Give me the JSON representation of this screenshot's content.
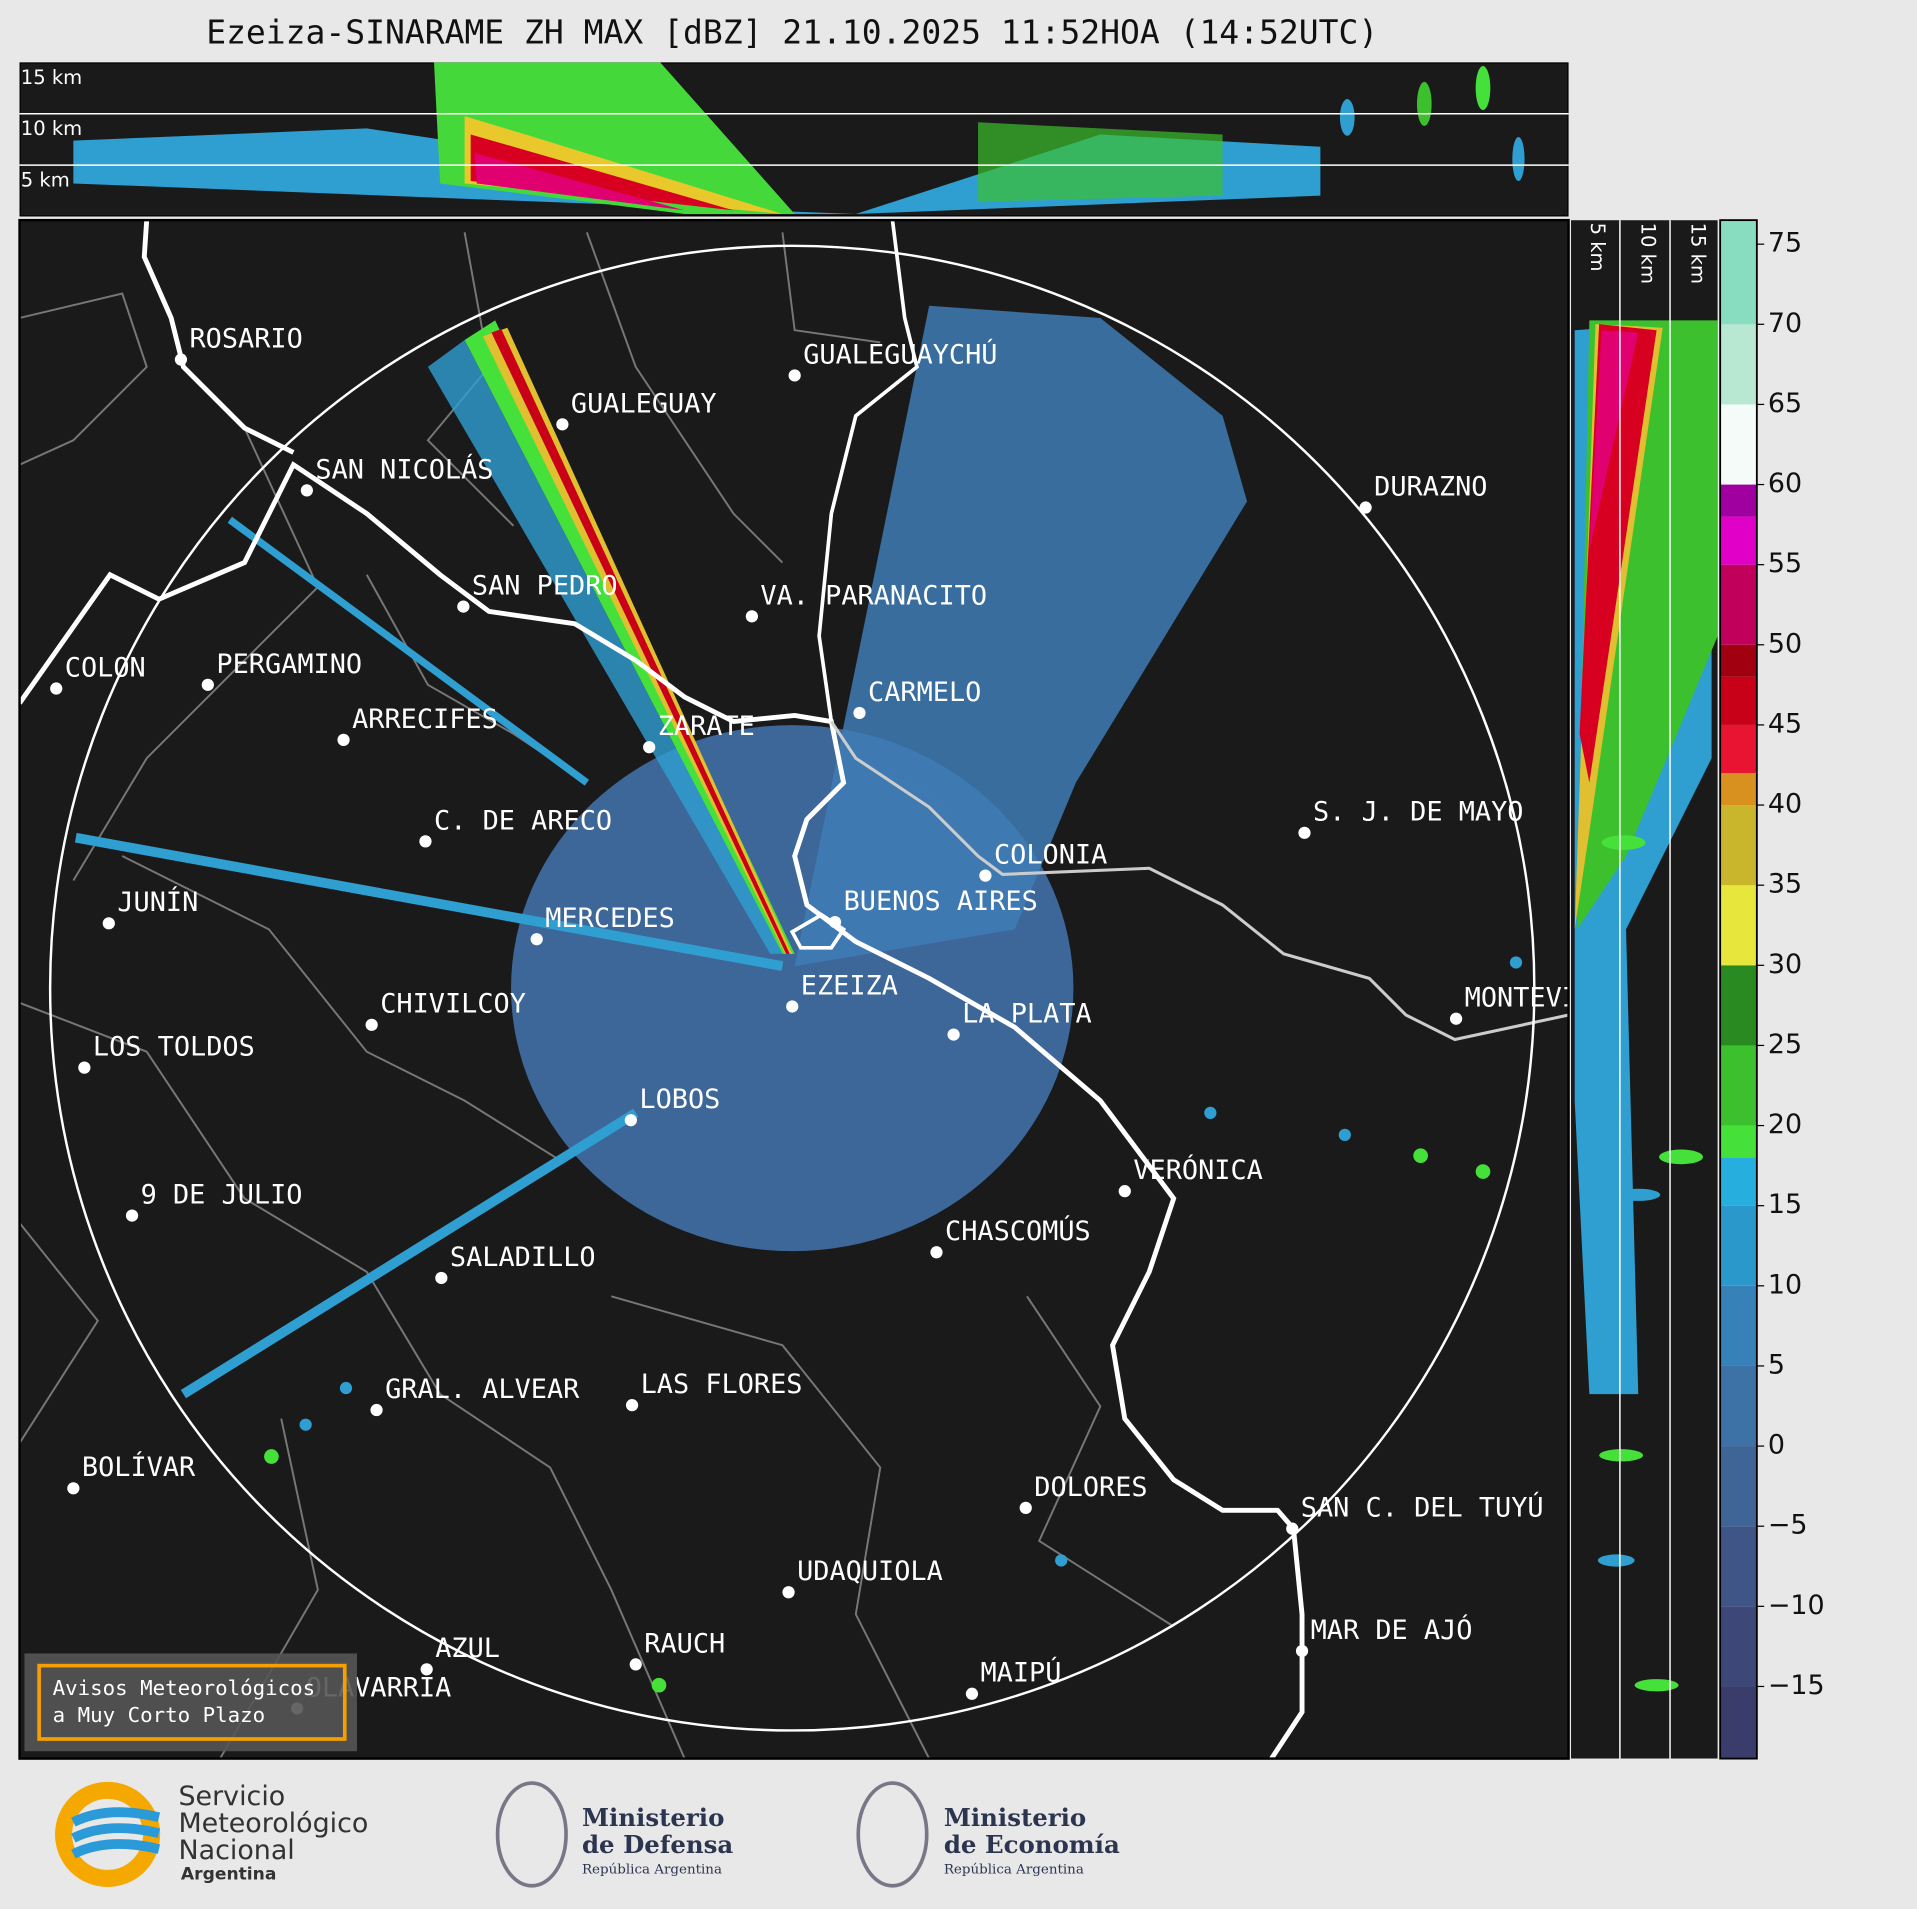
{
  "title": "Ezeiza-SINARAME ZH MAX [dBZ] 21.10.2025 11:52HOA (14:52UTC)",
  "altitude_labels": [
    "15 km",
    "10 km",
    "5 km"
  ],
  "side_altitude_labels": [
    "5 km",
    "10 km",
    "15 km"
  ],
  "cities": [
    "ROSARIO",
    "GUALEGUAYCHÚ",
    "GUALEGUAY",
    "SAN NICOLÁS",
    "DURAZNO",
    "SAN PEDRO",
    "VA. PARANACITO",
    "COLON",
    "PERGAMINO",
    "CARMELO",
    "ARRECIFES",
    "ZARATE",
    "C. DE ARECO",
    "S. J. DE MAYO",
    "COLONIA",
    "BUENOS AIRES",
    "JUNÍN",
    "MERCEDES",
    "EZEIZA",
    "MONTEVIDEO",
    "CHIVILCOY",
    "LA PLATA",
    "LOS TOLDOS",
    "LOBOS",
    "VERÓNICA",
    "9 DE JULIO",
    "CHASCOMÚS",
    "SALADILLO",
    "GRAL. ALVEAR",
    "LAS FLORES",
    "BOLÍVAR",
    "DOLORES",
    "SAN C. DEL TUYÚ",
    "UDAQUIOLA",
    "MAR DE AJÓ",
    "AZUL",
    "RAUCH",
    "MAIPÚ",
    "OLAVARRÍA"
  ],
  "colorbar": {
    "lim": [
      -19.5,
      76.5
    ],
    "ticks": [
      {
        "value": -15,
        "label": "−15"
      },
      {
        "value": -10,
        "label": "−10"
      },
      {
        "value": -5,
        "label": "−5"
      },
      0,
      5,
      10,
      15,
      20,
      25,
      30,
      35,
      40,
      45,
      50,
      55,
      60,
      65,
      70,
      75
    ],
    "edges": [
      -19.5,
      -15,
      -10,
      -5,
      0,
      5,
      10,
      15,
      18,
      20,
      25,
      30,
      35,
      40,
      42,
      45,
      48,
      50,
      55,
      58,
      60,
      65,
      70,
      76.5
    ],
    "colors": [
      "#3a3d6c",
      "#3e4878",
      "#3f5588",
      "#3f6496",
      "#3d72a6",
      "#3682b8",
      "#2b98cc",
      "#25aede",
      "#46e03a",
      "#3cc02e",
      "#2a8a22",
      "#e6e63c",
      "#c9b62c",
      "#d8901e",
      "#e81432",
      "#c80018",
      "#a00010",
      "#c0005a",
      "#e000c8",
      "#a000a0",
      "#f4fbf8",
      "#b8e8d2",
      "#88dcc0"
    ]
  },
  "notice": [
    "Avisos Meteorológicos",
    "a Muy Corto Plazo"
  ],
  "logos": [
    {
      "lines": [
        "Servicio",
        "Meteorológico",
        "Nacional"
      ],
      "country": "Argentina"
    },
    {
      "lines": [
        "Ministerio",
        "de Defensa"
      ],
      "country": "República Argentina"
    },
    {
      "lines": [
        "Ministerio",
        "de Economía"
      ],
      "country": "República Argentina"
    }
  ]
}
